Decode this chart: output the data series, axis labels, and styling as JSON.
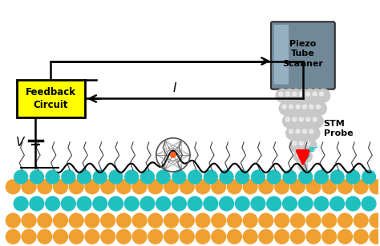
{
  "bg_color": "#ffffff",
  "piezo_tube_color": [
    "#b0c4d8",
    "#708090",
    "#a0b8cc"
  ],
  "piezo_tube_label": "Piezo\nTube\nScanner",
  "stm_probe_label": "STM\nProbe",
  "feedback_label": "Feedback\nCircuit",
  "feedback_bg": "#ffff00",
  "feedback_border": "#000000",
  "voltage_label": "V",
  "current_label": "I",
  "electron_label": "e⁻",
  "arrow_color": "#ff0000",
  "wire_color": "#000000",
  "surface_orange": "#f0a030",
  "surface_cyan": "#20c0c0",
  "probe_sphere_color": "#c8c8c8",
  "molecule_color": "#808080",
  "molecule_center": "#ff6020",
  "figsize": [
    4.74,
    3.08
  ],
  "dpi": 100
}
